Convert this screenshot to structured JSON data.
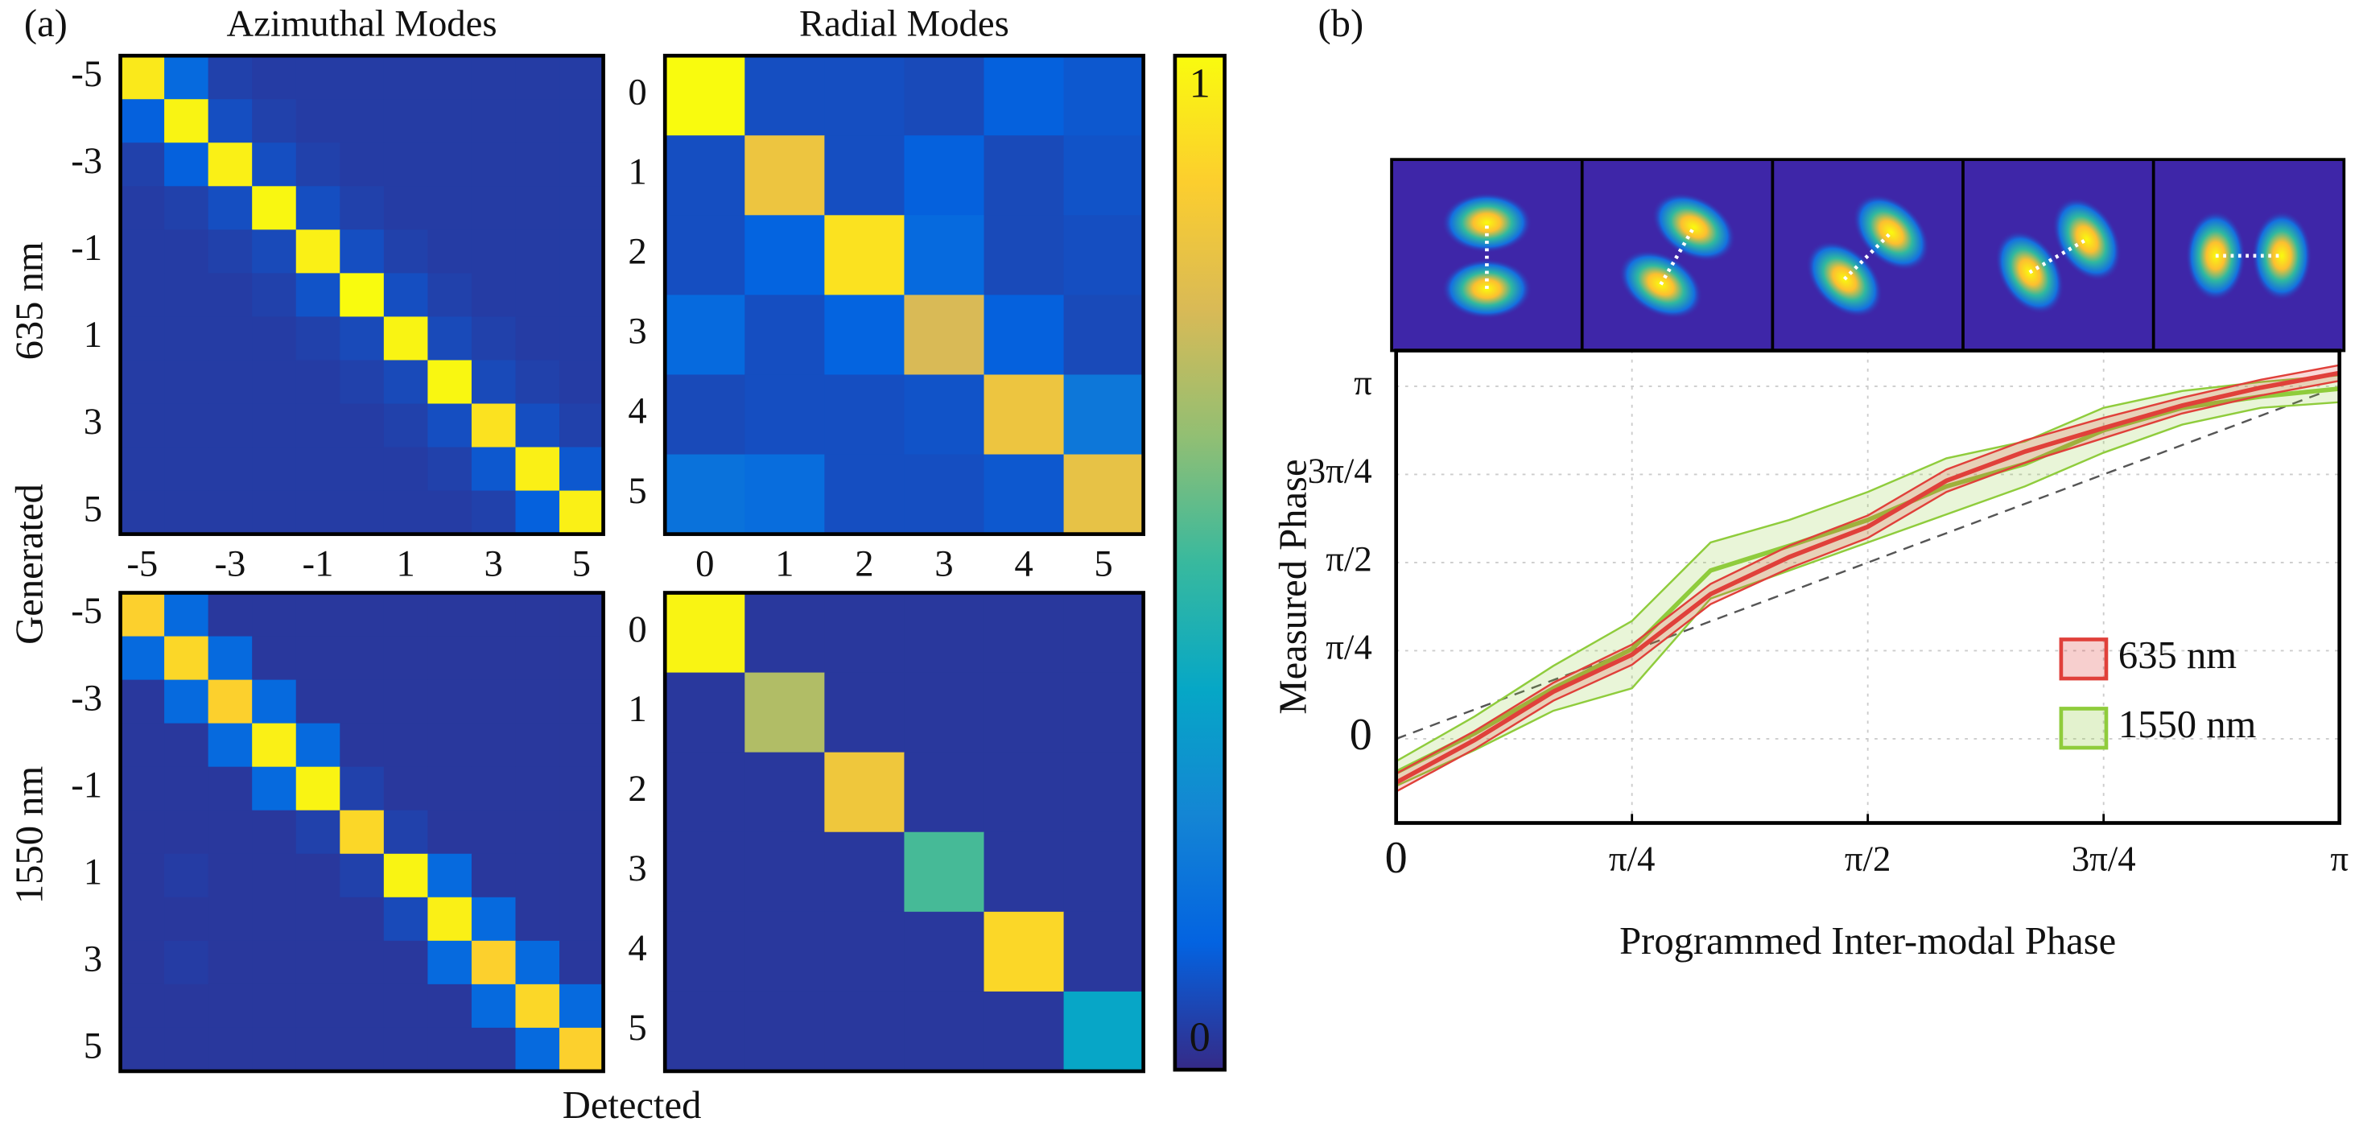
{
  "figure": {
    "panel_labels": [
      "(a)",
      "(b)"
    ],
    "row_labels": [
      {
        "text": "635 nm",
        "color": "#e0403a"
      },
      {
        "text": "1550 nm",
        "color": "#8fcc3c"
      }
    ],
    "y_label": "Generated",
    "x_label": "Detected"
  },
  "chart_data": [
    {
      "type": "heatmap",
      "title": "Azimuthal Modes",
      "x": [
        "-5",
        null,
        "-3",
        null,
        "-1",
        null,
        "1",
        null,
        "3",
        null,
        "5"
      ],
      "y": [
        "-5",
        null,
        "-3",
        null,
        "-1",
        null,
        "1",
        null,
        "3",
        null,
        "5"
      ],
      "values": [
        [
          0.95,
          0.15,
          0.05,
          0.04,
          0.04,
          0.04,
          0.04,
          0.04,
          0.04,
          0.04,
          0.04
        ],
        [
          0.12,
          0.98,
          0.08,
          0.05,
          0.04,
          0.04,
          0.04,
          0.04,
          0.04,
          0.04,
          0.04
        ],
        [
          0.05,
          0.12,
          0.97,
          0.08,
          0.05,
          0.04,
          0.04,
          0.04,
          0.04,
          0.04,
          0.04
        ],
        [
          0.04,
          0.05,
          0.08,
          0.99,
          0.08,
          0.05,
          0.04,
          0.04,
          0.04,
          0.04,
          0.04
        ],
        [
          0.04,
          0.04,
          0.05,
          0.07,
          0.97,
          0.08,
          0.05,
          0.04,
          0.04,
          0.04,
          0.04
        ],
        [
          0.04,
          0.04,
          0.04,
          0.05,
          0.09,
          1.0,
          0.08,
          0.05,
          0.04,
          0.04,
          0.04
        ],
        [
          0.04,
          0.04,
          0.04,
          0.04,
          0.05,
          0.07,
          0.98,
          0.07,
          0.05,
          0.04,
          0.04
        ],
        [
          0.04,
          0.04,
          0.04,
          0.04,
          0.04,
          0.05,
          0.07,
          0.99,
          0.07,
          0.05,
          0.04
        ],
        [
          0.04,
          0.04,
          0.04,
          0.04,
          0.04,
          0.04,
          0.05,
          0.08,
          0.93,
          0.08,
          0.05
        ],
        [
          0.04,
          0.04,
          0.04,
          0.04,
          0.04,
          0.04,
          0.04,
          0.05,
          0.1,
          0.97,
          0.1
        ],
        [
          0.04,
          0.04,
          0.04,
          0.04,
          0.04,
          0.04,
          0.04,
          0.04,
          0.05,
          0.12,
          0.97
        ]
      ]
    },
    {
      "type": "heatmap",
      "title": "Radial Modes",
      "x": [
        "0",
        "1",
        "2",
        "3",
        "4",
        "5"
      ],
      "y": [
        "0",
        "1",
        "2",
        "3",
        "4",
        "5"
      ],
      "values": [
        [
          1.0,
          0.08,
          0.08,
          0.07,
          0.12,
          0.1
        ],
        [
          0.08,
          0.82,
          0.08,
          0.12,
          0.07,
          0.09
        ],
        [
          0.08,
          0.13,
          0.93,
          0.15,
          0.07,
          0.08
        ],
        [
          0.15,
          0.08,
          0.13,
          0.75,
          0.12,
          0.07
        ],
        [
          0.07,
          0.08,
          0.08,
          0.09,
          0.82,
          0.2
        ],
        [
          0.18,
          0.16,
          0.08,
          0.08,
          0.1,
          0.8
        ]
      ]
    },
    {
      "type": "heatmap",
      "y": [
        "-5",
        null,
        "-3",
        null,
        "-1",
        null,
        "1",
        null,
        "3",
        null,
        "5"
      ],
      "values": [
        [
          0.88,
          0.15,
          0.03,
          0.03,
          0.03,
          0.03,
          0.03,
          0.03,
          0.03,
          0.03,
          0.03
        ],
        [
          0.15,
          0.9,
          0.15,
          0.03,
          0.03,
          0.03,
          0.03,
          0.03,
          0.03,
          0.03,
          0.03
        ],
        [
          0.03,
          0.15,
          0.88,
          0.15,
          0.03,
          0.03,
          0.03,
          0.03,
          0.03,
          0.03,
          0.03
        ],
        [
          0.03,
          0.03,
          0.15,
          0.97,
          0.15,
          0.03,
          0.03,
          0.03,
          0.03,
          0.03,
          0.03
        ],
        [
          0.03,
          0.03,
          0.03,
          0.15,
          0.98,
          0.05,
          0.03,
          0.03,
          0.03,
          0.03,
          0.03
        ],
        [
          0.03,
          0.03,
          0.03,
          0.03,
          0.05,
          0.9,
          0.05,
          0.03,
          0.03,
          0.03,
          0.03
        ],
        [
          0.03,
          0.04,
          0.03,
          0.03,
          0.03,
          0.05,
          0.98,
          0.15,
          0.03,
          0.03,
          0.03
        ],
        [
          0.03,
          0.03,
          0.03,
          0.03,
          0.03,
          0.03,
          0.07,
          0.97,
          0.15,
          0.03,
          0.03
        ],
        [
          0.03,
          0.04,
          0.03,
          0.03,
          0.03,
          0.03,
          0.03,
          0.15,
          0.88,
          0.15,
          0.03
        ],
        [
          0.03,
          0.03,
          0.03,
          0.03,
          0.03,
          0.03,
          0.03,
          0.03,
          0.15,
          0.9,
          0.15
        ],
        [
          0.03,
          0.03,
          0.03,
          0.03,
          0.03,
          0.03,
          0.03,
          0.03,
          0.03,
          0.15,
          0.88
        ]
      ]
    },
    {
      "type": "heatmap",
      "y": [
        "0",
        "1",
        "2",
        "3",
        "4",
        "5"
      ],
      "values": [
        [
          0.98,
          0.03,
          0.03,
          0.03,
          0.03,
          0.03
        ],
        [
          0.03,
          0.68,
          0.03,
          0.03,
          0.03,
          0.03
        ],
        [
          0.03,
          0.03,
          0.83,
          0.03,
          0.03,
          0.03
        ],
        [
          0.03,
          0.03,
          0.03,
          0.52,
          0.03,
          0.03
        ],
        [
          0.03,
          0.03,
          0.03,
          0.03,
          0.9,
          0.03
        ],
        [
          0.03,
          0.03,
          0.03,
          0.03,
          0.03,
          0.37
        ]
      ]
    },
    {
      "type": "colorbar",
      "ylim": [
        0,
        1
      ],
      "yticks": [
        0,
        1
      ],
      "colormap": [
        "#352a87",
        "#0363e1",
        "#1485d4",
        "#06a7c6",
        "#38b99e",
        "#92bf73",
        "#d9ba56",
        "#fcce2e",
        "#f9fb0e"
      ]
    },
    {
      "type": "line",
      "x_label": "Programmed Inter-modal Phase",
      "y_label": "Measured Phase",
      "x": [
        0,
        0.2618,
        0.5236,
        0.7854,
        1.0472,
        1.309,
        1.5708,
        1.8326,
        2.0944,
        2.3562,
        2.618,
        2.8798,
        3.1416
      ],
      "xlim": [
        0,
        3.1416
      ],
      "ylim": [
        -0.75,
        3.46
      ],
      "xticks": [
        0,
        {
          "value": 0.7854,
          "label": "π/4"
        },
        {
          "value": 1.5708,
          "label": "π/2"
        },
        {
          "value": 2.3562,
          "label": "3π/4"
        },
        {
          "value": 3.1416,
          "label": "π"
        }
      ],
      "yticks": [
        0,
        {
          "value": 0.7854,
          "label": "π/4"
        },
        {
          "value": 1.5708,
          "label": "π/2"
        },
        {
          "value": 2.3562,
          "label": "3π/4"
        },
        {
          "value": 3.1416,
          "label": "π"
        }
      ],
      "grid": true,
      "legend": "lower right",
      "series": [
        {
          "name": "635 nm",
          "color": "#e0403a",
          "values": [
            -0.39,
            -0.01,
            0.42,
            0.75,
            1.29,
            1.62,
            1.89,
            2.3,
            2.56,
            2.77,
            2.97,
            3.13,
            3.26
          ],
          "lower": [
            -0.47,
            -0.09,
            0.34,
            0.66,
            1.2,
            1.52,
            1.79,
            2.2,
            2.46,
            2.68,
            2.9,
            3.06,
            3.19
          ],
          "upper": [
            -0.31,
            0.07,
            0.5,
            0.84,
            1.38,
            1.72,
            1.99,
            2.4,
            2.66,
            2.86,
            3.04,
            3.2,
            3.33
          ]
        },
        {
          "name": "1550 nm",
          "color": "#8fcc3c",
          "values": [
            -0.3,
            0.05,
            0.45,
            0.8,
            1.5,
            1.72,
            1.95,
            2.25,
            2.45,
            2.75,
            2.95,
            3.05,
            3.12
          ],
          "lower": [
            -0.42,
            -0.1,
            0.25,
            0.45,
            1.25,
            1.5,
            1.75,
            2.0,
            2.25,
            2.55,
            2.8,
            2.95,
            3.0
          ],
          "upper": [
            -0.2,
            0.2,
            0.65,
            1.05,
            1.75,
            1.95,
            2.2,
            2.5,
            2.65,
            2.95,
            3.1,
            3.18,
            3.24
          ]
        }
      ]
    }
  ]
}
